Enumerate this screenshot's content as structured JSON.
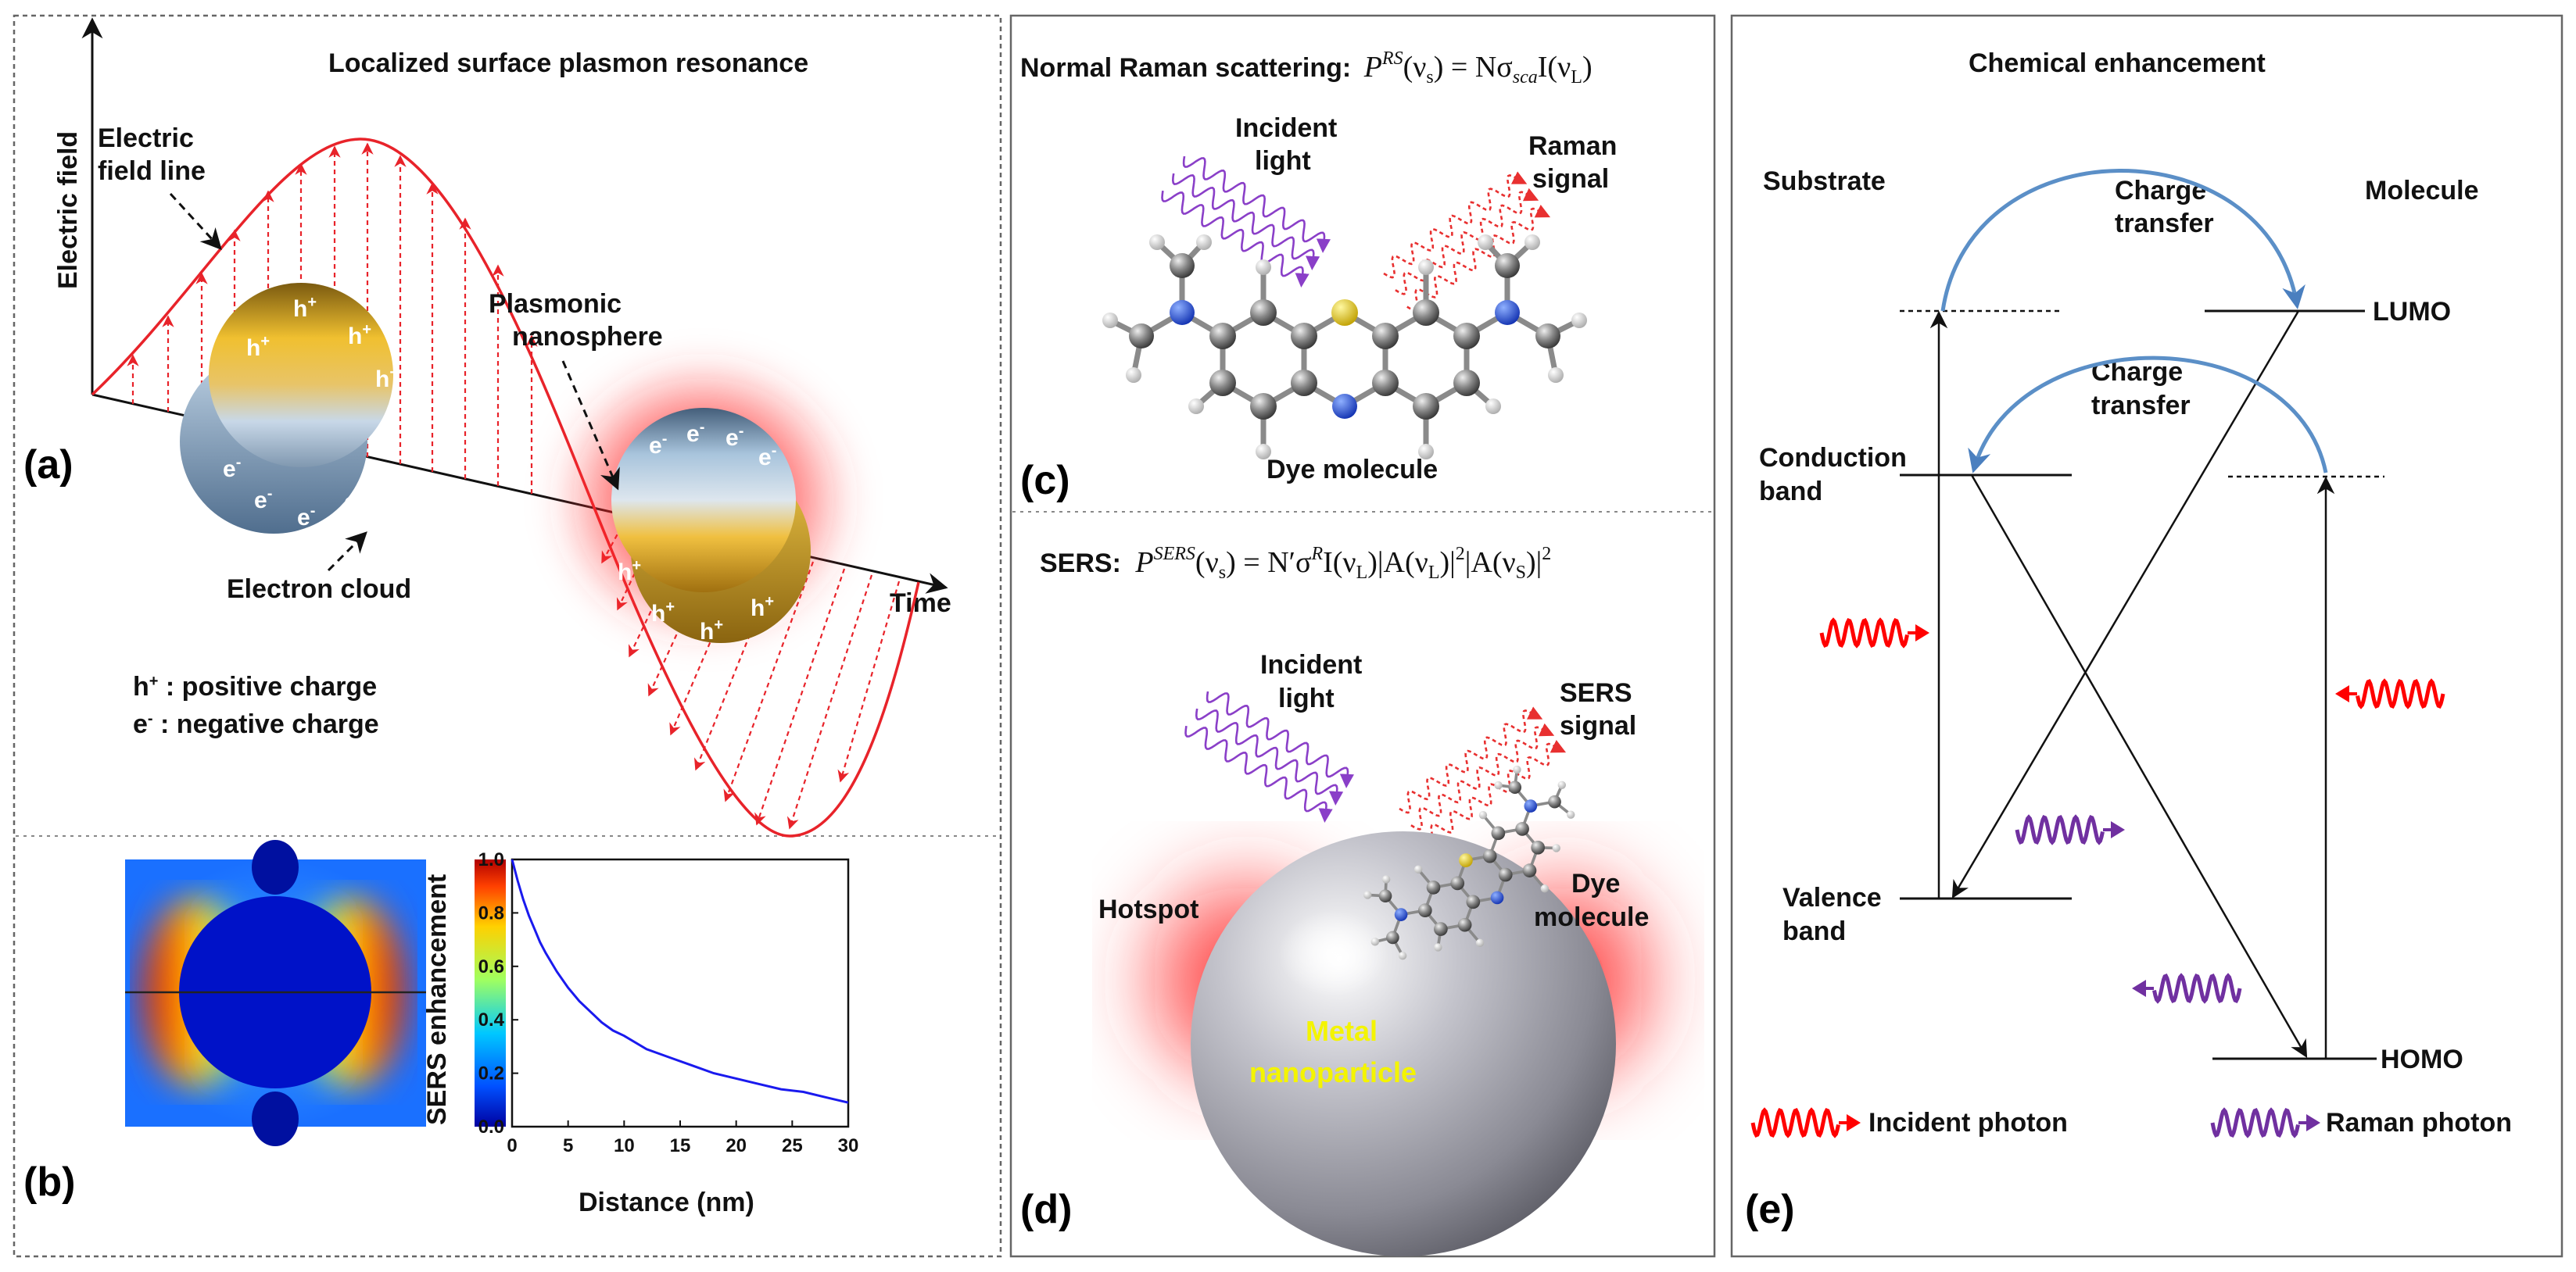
{
  "panels": {
    "a": {
      "label": "(a)",
      "title": "Localized surface plasmon resonance",
      "axis_y": "Electric field",
      "axis_x": "Time",
      "field_line_1": "Electric",
      "field_line_2": "field line",
      "nanosphere_1": "Plasmonic",
      "nanosphere_2": "nanosphere",
      "electron_cloud": "Electron cloud",
      "h_symbol": "h",
      "h_sup": "+",
      "e_symbol": "e",
      "e_sup": "-",
      "legend_pos_text": " : positive charge",
      "legend_neg_text": " : negative charge"
    },
    "b": {
      "label": "(b)",
      "chart_data": {
        "type": "line",
        "xlabel": "Distance (nm)",
        "ylabel": "SERS enhancement",
        "x_ticks": [
          "0",
          "5",
          "10",
          "15",
          "20",
          "25",
          "30"
        ],
        "y_ticks": [
          "0.0",
          "0.2",
          "0.4",
          "0.6",
          "0.8",
          "1.0"
        ],
        "xlim": [
          0,
          30
        ],
        "ylim": [
          0,
          1
        ],
        "series": [
          {
            "name": "SERS enhancement",
            "color": "#1a1aee",
            "x": [
              0,
              0.5,
              1,
              1.5,
              2,
              2.5,
              3,
              4,
              5,
              6,
              7,
              8,
              9,
              10,
              12,
              14,
              16,
              18,
              20,
              22,
              24,
              26,
              28,
              30
            ],
            "y": [
              1.0,
              0.92,
              0.85,
              0.79,
              0.74,
              0.69,
              0.65,
              0.58,
              0.52,
              0.47,
              0.43,
              0.39,
              0.36,
              0.34,
              0.29,
              0.26,
              0.23,
              0.2,
              0.18,
              0.16,
              0.14,
              0.13,
              0.11,
              0.09
            ]
          }
        ]
      }
    },
    "c": {
      "label": "(c)",
      "title": "Normal Raman scattering:",
      "eq_P": "P",
      "eq_P_sup": "RS",
      "eq_rest": "(ν",
      "eq_sub_s": "s",
      "eq_mid": ") = Nσ",
      "eq_sub_sca": "sca",
      "eq_tail": "I(ν",
      "eq_sub_L": "L",
      "eq_end": ")",
      "incident_1": "Incident",
      "incident_2": "light",
      "raman_1": "Raman",
      "raman_2": "signal",
      "molecule": "Dye molecule"
    },
    "d": {
      "label": "(d)",
      "title": "SERS:",
      "eq_P": "P",
      "eq_P_sup": "SERS",
      "eq_a": "(ν",
      "eq_s": "s",
      "eq_b": ") = N′σ",
      "eq_R": "R",
      "eq_c": "I(ν",
      "eq_L": "L",
      "eq_d": ")|A(ν",
      "eq_L2": "L",
      "eq_e": ")|",
      "eq_sq": "2",
      "eq_f": "|A(ν",
      "eq_S": "S",
      "eq_g": ")|",
      "eq_sq2": "2",
      "incident_1": "Incident",
      "incident_2": "light",
      "sers_1": "SERS",
      "sers_2": "signal",
      "hotspot": "Hotspot",
      "dye_1": "Dye",
      "dye_2": "molecule",
      "metal_1": "Metal",
      "metal_2": "nanoparticle"
    },
    "e": {
      "label": "(e)",
      "title": "Chemical enhancement",
      "substrate": "Substrate",
      "molecule": "Molecule",
      "ct_top_1": "Charge",
      "ct_top_2": "transfer",
      "ct_mid_1": "Charge",
      "ct_mid_2": "transfer",
      "lumo": "LUMO",
      "homo": "HOMO",
      "conduction_1": "Conduction",
      "conduction_2": "band",
      "valence_1": "Valence",
      "valence_2": "band",
      "legend_incident": "Incident photon",
      "legend_raman": "Raman photon"
    }
  },
  "colors": {
    "wave": "#e8232a",
    "incident_photon": "#ff0000",
    "raman_photon": "#7030a0",
    "charge_transfer": "#5b8fc7",
    "curve": "#1a1aee"
  }
}
